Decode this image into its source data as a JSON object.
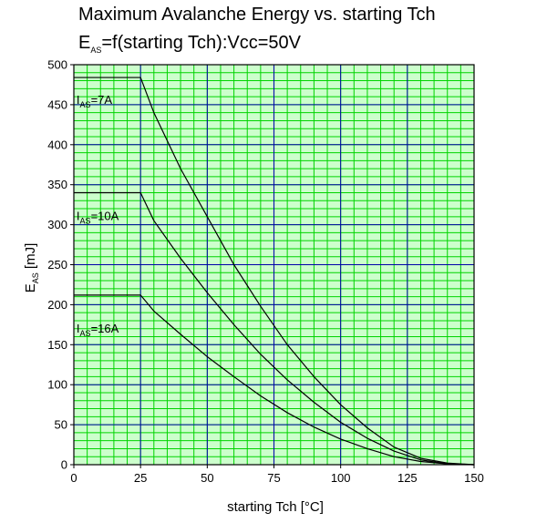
{
  "chart_data": {
    "type": "line",
    "title_line1": "Maximum Avalanche Energy vs. starting Tch",
    "title_line2": {
      "main": "E",
      "sub": "AS",
      "rest": "=f(starting Tch):Vcc=50V"
    },
    "xlabel": "starting Tch [°C]",
    "ylabel": {
      "main": "E",
      "sub": "AS",
      "rest": " [mJ]"
    },
    "xlim": [
      0,
      150
    ],
    "ylim": [
      0,
      500
    ],
    "x_major_ticks": [
      0,
      25,
      50,
      75,
      100,
      125,
      150
    ],
    "y_major_ticks": [
      0,
      50,
      100,
      150,
      200,
      250,
      300,
      350,
      400,
      450,
      500
    ],
    "x_minor_step": 5,
    "y_minor_step": 10,
    "grid": true,
    "colors": {
      "minor_grid": "#00d400",
      "major_grid": "#0000aa",
      "plot_background": "#ccffcc",
      "series_line": "#000000",
      "frame": "#000000"
    },
    "series": [
      {
        "label": {
          "main": "I",
          "sub": "AS",
          "rest": "=7A"
        },
        "label_x": 1,
        "label_y": 451,
        "x": [
          0,
          25,
          30,
          40,
          50,
          60,
          70,
          80,
          90,
          100,
          110,
          120,
          130,
          140,
          150
        ],
        "y": [
          484,
          484,
          440,
          370,
          310,
          250,
          198,
          150,
          110,
          75,
          46,
          22,
          8,
          2,
          0
        ]
      },
      {
        "label": {
          "main": "I",
          "sub": "AS",
          "rest": "=10A"
        },
        "label_x": 1,
        "label_y": 306,
        "x": [
          0,
          25,
          30,
          40,
          50,
          60,
          70,
          80,
          90,
          100,
          110,
          120,
          130,
          140,
          150
        ],
        "y": [
          340,
          340,
          305,
          258,
          215,
          175,
          138,
          106,
          78,
          53,
          33,
          17,
          6,
          1,
          0
        ]
      },
      {
        "label": {
          "main": "I",
          "sub": "AS",
          "rest": "=16A"
        },
        "label_x": 1,
        "label_y": 165,
        "x": [
          0,
          25,
          30,
          40,
          50,
          60,
          70,
          80,
          90,
          100,
          110,
          120,
          130,
          140,
          150
        ],
        "y": [
          212,
          212,
          192,
          163,
          135,
          110,
          86,
          65,
          47,
          32,
          20,
          10,
          4,
          1,
          0
        ]
      }
    ]
  }
}
